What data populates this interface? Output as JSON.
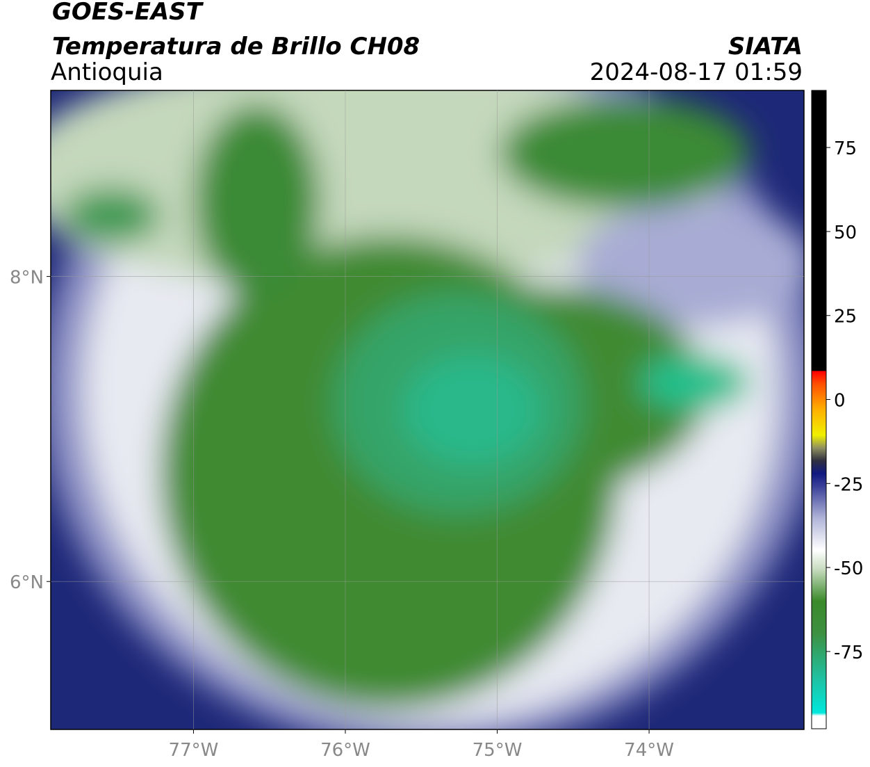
{
  "header": {
    "title": "GOES-EAST",
    "subtitle": "Temperatura de Brillo CH08",
    "region": "Antioquia",
    "source": "SIATA",
    "datetime": "2024-08-17 01:59"
  },
  "map": {
    "xlim": [
      -77.94,
      -72.98
    ],
    "ylim": [
      5.03,
      9.22
    ],
    "xticks": [
      {
        "value": -77,
        "label": "77°W"
      },
      {
        "value": -76,
        "label": "76°W"
      },
      {
        "value": -75,
        "label": "75°W"
      },
      {
        "value": -74,
        "label": "74°W"
      }
    ],
    "yticks": [
      {
        "value": 8,
        "label": "8°N"
      },
      {
        "value": 6,
        "label": "6°N"
      }
    ],
    "grid": true
  },
  "colorbar": {
    "lim": [
      -98,
      92
    ],
    "ticks": [
      75,
      50,
      25,
      0,
      -25,
      -50,
      -75
    ]
  }
}
